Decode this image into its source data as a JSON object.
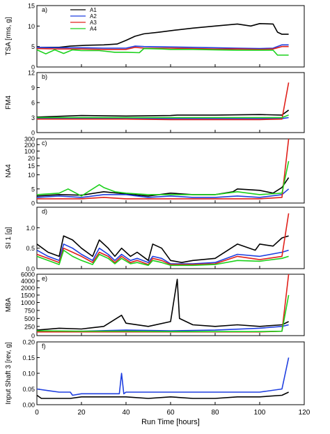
{
  "chart_data": [
    {
      "type": "line",
      "panel_label": "a)",
      "ylabel": "TSA [rms, g]",
      "ylim": [
        0,
        15
      ],
      "yticks": [
        "0",
        "5",
        "10",
        "15"
      ],
      "legend": {
        "placement": "top-left",
        "entries": [
          "A1",
          "A2",
          "A3",
          "A4"
        ]
      },
      "series": [
        {
          "name": "A1",
          "color": "#000000",
          "x": [
            0,
            10,
            15,
            22,
            30,
            36,
            40,
            44,
            48,
            55,
            62,
            70,
            80,
            90,
            96,
            100,
            106,
            108,
            110,
            113
          ],
          "y": [
            4.8,
            4.8,
            5.1,
            5.3,
            5.4,
            5.6,
            6.5,
            7.5,
            8.1,
            8.5,
            9.0,
            9.5,
            10.0,
            10.5,
            10.0,
            10.6,
            10.5,
            8.5,
            8.0,
            8.0
          ]
        },
        {
          "name": "A2",
          "color": "#1f3fe0",
          "x": [
            0,
            10,
            20,
            30,
            40,
            44,
            48,
            60,
            70,
            80,
            90,
            100,
            106,
            110,
            113
          ],
          "y": [
            4.8,
            4.7,
            4.7,
            4.6,
            4.6,
            5.1,
            5.0,
            4.9,
            4.8,
            4.7,
            4.6,
            4.5,
            4.6,
            5.4,
            5.4
          ]
        },
        {
          "name": "A3",
          "color": "#e0201a",
          "x": [
            0,
            10,
            20,
            30,
            40,
            44,
            48,
            60,
            70,
            80,
            90,
            100,
            106,
            110,
            113
          ],
          "y": [
            4.5,
            4.4,
            4.4,
            4.3,
            4.3,
            4.8,
            4.6,
            4.6,
            4.5,
            4.4,
            4.4,
            4.3,
            4.4,
            5.0,
            5.0
          ]
        },
        {
          "name": "A4",
          "color": "#1bd11b",
          "x": [
            0,
            4,
            8,
            12,
            16,
            20,
            28,
            35,
            40,
            46,
            48,
            56,
            60,
            70,
            80,
            90,
            100,
            106,
            108,
            113
          ],
          "y": [
            4.2,
            3.2,
            4.2,
            3.3,
            4.2,
            4.0,
            4.0,
            3.6,
            3.6,
            3.5,
            4.5,
            4.4,
            4.3,
            4.3,
            4.2,
            4.1,
            4.1,
            4.1,
            2.9,
            2.9
          ]
        }
      ]
    },
    {
      "type": "line",
      "panel_label": "b)",
      "ylabel": "FM4",
      "ylim": [
        0,
        12
      ],
      "yticks": [
        "0",
        "3",
        "6",
        "9",
        "12"
      ],
      "series": [
        {
          "name": "A1",
          "color": "#000000",
          "x": [
            0,
            20,
            40,
            60,
            63,
            80,
            100,
            110,
            113
          ],
          "y": [
            3.1,
            3.4,
            3.3,
            3.4,
            3.5,
            3.5,
            3.6,
            3.5,
            4.5
          ]
        },
        {
          "name": "A2",
          "color": "#1f3fe0",
          "x": [
            0,
            20,
            40,
            60,
            80,
            100,
            110,
            113
          ],
          "y": [
            2.9,
            2.9,
            2.8,
            2.8,
            2.8,
            2.8,
            2.8,
            3.0
          ]
        },
        {
          "name": "A3",
          "color": "#e0201a",
          "x": [
            0,
            20,
            40,
            60,
            80,
            100,
            110,
            113
          ],
          "y": [
            2.7,
            2.7,
            2.7,
            2.6,
            2.6,
            2.6,
            2.7,
            10.0
          ]
        },
        {
          "name": "A4",
          "color": "#1bd11b",
          "x": [
            0,
            20,
            40,
            60,
            80,
            100,
            110,
            113
          ],
          "y": [
            3.0,
            3.0,
            3.0,
            3.0,
            3.0,
            3.0,
            3.0,
            3.5
          ]
        }
      ]
    },
    {
      "type": "line",
      "panel_label": "c)",
      "ylabel": "NA4",
      "ylim": [
        0,
        300
      ],
      "yticks": [
        "0",
        "5",
        "10",
        "15",
        "20",
        "100",
        "200",
        "300"
      ],
      "series": [
        {
          "name": "A1",
          "color": "#000000",
          "x": [
            0,
            10,
            20,
            30,
            40,
            50,
            60,
            70,
            80,
            88,
            90,
            100,
            106,
            110,
            113
          ],
          "y": [
            2.5,
            3.0,
            2.8,
            4.0,
            3.2,
            2.5,
            3.5,
            3.0,
            3.0,
            4.0,
            5.0,
            4.5,
            3.5,
            5.5,
            9.0
          ]
        },
        {
          "name": "A2",
          "color": "#1f3fe0",
          "x": [
            0,
            10,
            20,
            30,
            40,
            50,
            60,
            70,
            80,
            90,
            100,
            110,
            113
          ],
          "y": [
            2.0,
            2.5,
            2.0,
            3.0,
            3.0,
            2.0,
            2.5,
            2.0,
            2.0,
            2.5,
            2.0,
            3.0,
            5.0
          ]
        },
        {
          "name": "A3",
          "color": "#e0201a",
          "x": [
            0,
            10,
            20,
            30,
            40,
            50,
            60,
            70,
            80,
            90,
            100,
            110,
            113
          ],
          "y": [
            1.5,
            1.5,
            1.5,
            2.0,
            1.5,
            1.5,
            1.5,
            1.5,
            1.5,
            1.5,
            1.5,
            2.0,
            300
          ]
        },
        {
          "name": "A4",
          "color": "#1bd11b",
          "x": [
            0,
            10,
            14,
            20,
            28,
            30,
            35,
            40,
            50,
            60,
            70,
            80,
            90,
            100,
            110,
            113
          ],
          "y": [
            3.0,
            3.5,
            5.0,
            2.5,
            6.5,
            5.5,
            4.0,
            3.5,
            3.0,
            3.0,
            3.0,
            3.0,
            4.0,
            3.0,
            3.5,
            18.0
          ]
        }
      ]
    },
    {
      "type": "line",
      "panel_label": "d)",
      "ylabel": "SI 1 [g]",
      "ylim": [
        0,
        1.5
      ],
      "yticks": [
        "0.0",
        "0.5",
        "1.0"
      ],
      "series": [
        {
          "name": "A1",
          "color": "#000000",
          "x": [
            0,
            5,
            10,
            12,
            16,
            20,
            25,
            28,
            32,
            35,
            38,
            42,
            45,
            50,
            52,
            56,
            60,
            65,
            70,
            80,
            90,
            98,
            100,
            106,
            110,
            113
          ],
          "y": [
            0.6,
            0.4,
            0.3,
            0.8,
            0.7,
            0.5,
            0.3,
            0.7,
            0.5,
            0.3,
            0.5,
            0.3,
            0.4,
            0.2,
            0.6,
            0.5,
            0.2,
            0.15,
            0.2,
            0.25,
            0.6,
            0.45,
            0.6,
            0.55,
            0.75,
            0.8
          ]
        },
        {
          "name": "A2",
          "color": "#1f3fe0",
          "x": [
            0,
            5,
            10,
            12,
            16,
            20,
            25,
            28,
            32,
            35,
            38,
            42,
            45,
            50,
            52,
            56,
            60,
            70,
            80,
            90,
            100,
            110,
            113
          ],
          "y": [
            0.45,
            0.3,
            0.2,
            0.6,
            0.5,
            0.35,
            0.2,
            0.5,
            0.35,
            0.2,
            0.35,
            0.2,
            0.25,
            0.15,
            0.3,
            0.25,
            0.12,
            0.12,
            0.15,
            0.35,
            0.3,
            0.4,
            0.45
          ]
        },
        {
          "name": "A3",
          "color": "#e0201a",
          "x": [
            0,
            5,
            10,
            12,
            16,
            20,
            25,
            28,
            32,
            35,
            38,
            42,
            45,
            50,
            52,
            56,
            60,
            70,
            80,
            90,
            100,
            110,
            113
          ],
          "y": [
            0.35,
            0.25,
            0.15,
            0.5,
            0.4,
            0.3,
            0.15,
            0.4,
            0.3,
            0.15,
            0.3,
            0.15,
            0.2,
            0.1,
            0.25,
            0.2,
            0.1,
            0.1,
            0.12,
            0.3,
            0.22,
            0.3,
            1.35
          ]
        },
        {
          "name": "A4",
          "color": "#1bd11b",
          "x": [
            0,
            5,
            10,
            12,
            16,
            20,
            25,
            28,
            32,
            35,
            38,
            42,
            45,
            50,
            52,
            56,
            60,
            70,
            80,
            90,
            100,
            110,
            113
          ],
          "y": [
            0.3,
            0.2,
            0.1,
            0.45,
            0.3,
            0.2,
            0.1,
            0.35,
            0.25,
            0.12,
            0.25,
            0.12,
            0.15,
            0.08,
            0.2,
            0.15,
            0.08,
            0.08,
            0.1,
            0.2,
            0.18,
            0.25,
            0.3
          ]
        }
      ]
    },
    {
      "type": "line",
      "panel_label": "e)",
      "ylabel": "M8A",
      "ylim": [
        0,
        6000
      ],
      "yticks": [
        "0",
        "250",
        "500",
        "750",
        "1000",
        "1500",
        "2000",
        "4000",
        "6000"
      ],
      "series": [
        {
          "name": "A1",
          "color": "#000000",
          "x": [
            0,
            10,
            20,
            30,
            38,
            40,
            50,
            60,
            63,
            64,
            70,
            80,
            90,
            100,
            110,
            113
          ],
          "y": [
            150,
            200,
            180,
            250,
            600,
            350,
            250,
            400,
            4500,
            500,
            300,
            250,
            300,
            250,
            300,
            400
          ]
        },
        {
          "name": "A2",
          "color": "#1f3fe0",
          "x": [
            0,
            20,
            40,
            60,
            80,
            100,
            110,
            113
          ],
          "y": [
            120,
            120,
            150,
            130,
            150,
            200,
            250,
            300
          ]
        },
        {
          "name": "A3",
          "color": "#e0201a",
          "x": [
            0,
            20,
            40,
            60,
            80,
            100,
            110,
            113
          ],
          "y": [
            100,
            100,
            100,
            100,
            100,
            100,
            120,
            6000
          ]
        },
        {
          "name": "A4",
          "color": "#1bd11b",
          "x": [
            0,
            20,
            40,
            60,
            80,
            100,
            110,
            113
          ],
          "y": [
            130,
            120,
            120,
            110,
            110,
            110,
            120,
            1500
          ]
        }
      ]
    },
    {
      "type": "line",
      "panel_label": "f)",
      "ylabel": "Input Shaft 3 [rev, g]",
      "xlabel": "Run Time [hours]",
      "ylim": [
        0,
        0.2
      ],
      "xlim": [
        0,
        120
      ],
      "yticks": [
        "0.00",
        "0.05",
        "0.10",
        "0.15",
        "0.20"
      ],
      "xticks": [
        "0",
        "20",
        "40",
        "60",
        "80",
        "100",
        "120"
      ],
      "series": [
        {
          "name": "A1",
          "color": "#000000",
          "x": [
            0,
            2,
            4,
            10,
            15,
            20,
            30,
            40,
            50,
            60,
            70,
            80,
            90,
            100,
            110,
            113
          ],
          "y": [
            0.03,
            0.02,
            0.02,
            0.02,
            0.02,
            0.025,
            0.025,
            0.025,
            0.02,
            0.025,
            0.02,
            0.02,
            0.025,
            0.025,
            0.03,
            0.04
          ]
        },
        {
          "name": "A2",
          "color": "#1f3fe0",
          "x": [
            0,
            5,
            10,
            15,
            16,
            20,
            30,
            37,
            38,
            39,
            40,
            50,
            60,
            70,
            80,
            90,
            100,
            110,
            113
          ],
          "y": [
            0.05,
            0.045,
            0.04,
            0.04,
            0.03,
            0.035,
            0.035,
            0.035,
            0.1,
            0.035,
            0.04,
            0.04,
            0.04,
            0.04,
            0.04,
            0.04,
            0.04,
            0.05,
            0.15
          ]
        }
      ]
    }
  ]
}
